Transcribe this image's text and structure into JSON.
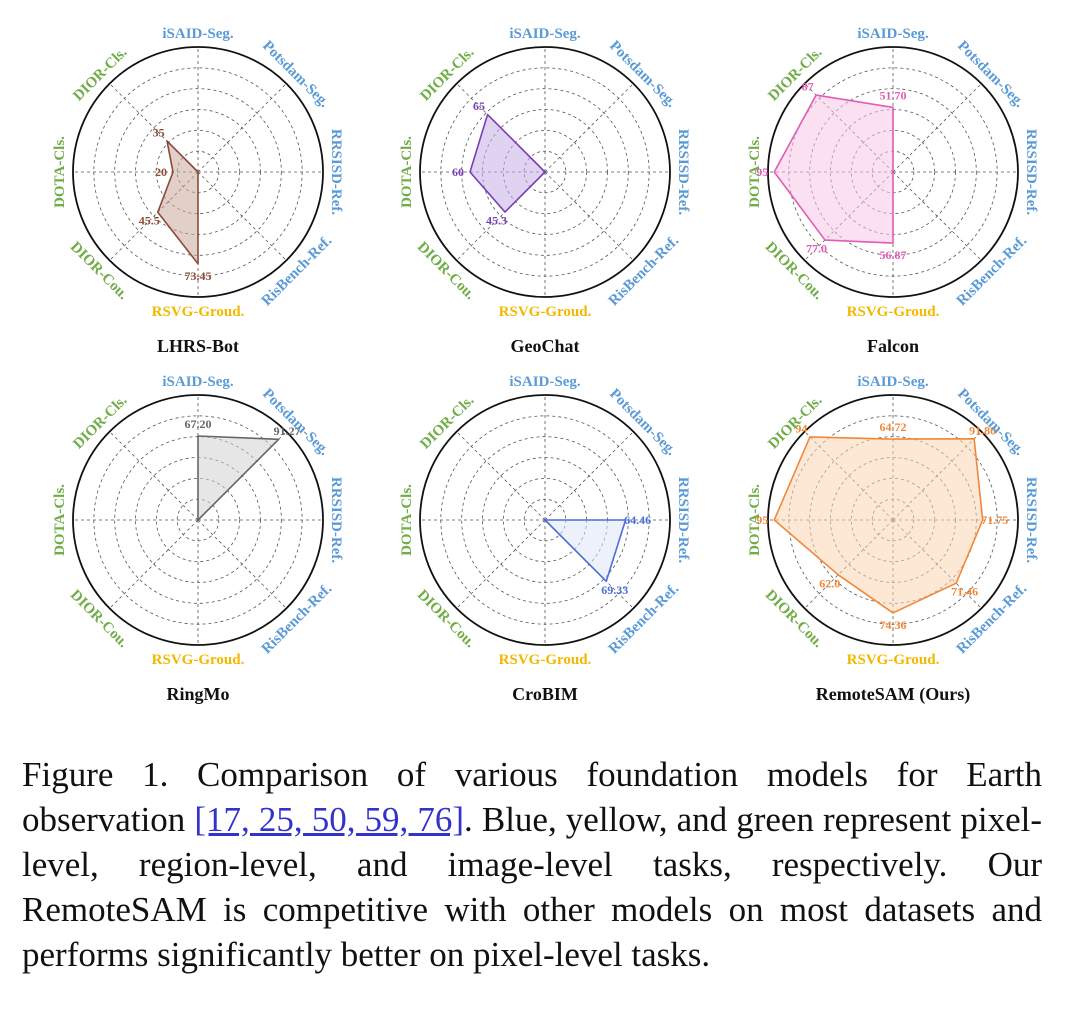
{
  "chart_data": {
    "type": "radar",
    "axes": [
      {
        "name": "iSAID-Seg.",
        "level": "pixel"
      },
      {
        "name": "Potsdam-Seg.",
        "level": "pixel"
      },
      {
        "name": "RRSISD-Ref.",
        "level": "pixel"
      },
      {
        "name": "RisBench-Ref.",
        "level": "pixel"
      },
      {
        "name": "RSVG-Groud.",
        "level": "region"
      },
      {
        "name": "DIOR-Cou.",
        "level": "image"
      },
      {
        "name": "DOTA-Cls.",
        "level": "image"
      },
      {
        "name": "DIOR-Cls.",
        "level": "image"
      }
    ],
    "level_colors": {
      "pixel": "#5b9bd5",
      "region": "#f2b800",
      "image": "#70ad47"
    },
    "range": [
      0,
      100
    ],
    "rings": 6,
    "models": [
      {
        "name": "LHRS-Bot",
        "color": "#8b4a35",
        "fill": "#c9a79a",
        "values": [
          null,
          null,
          null,
          null,
          73.45,
          45.5,
          20,
          35
        ],
        "labels": [
          null,
          null,
          null,
          null,
          "73.45",
          "45.5",
          "20",
          "35"
        ]
      },
      {
        "name": "GeoChat",
        "color": "#7a3fb3",
        "fill": "#c6aee6",
        "values": [
          null,
          null,
          null,
          null,
          null,
          45.3,
          60,
          65
        ],
        "labels": [
          null,
          null,
          null,
          null,
          null,
          "45.3",
          "60",
          "65"
        ]
      },
      {
        "name": "Falcon",
        "color": "#e05cb5",
        "fill": "#f5c6e6",
        "values": [
          51.7,
          null,
          null,
          null,
          56.87,
          77.0,
          95,
          87
        ],
        "labels": [
          "51.70",
          null,
          null,
          null,
          "56.87",
          "77.0",
          "95",
          "87"
        ]
      },
      {
        "name": "RingMo",
        "color": "#666666",
        "fill": "#d2d2d2",
        "values": [
          67.2,
          91.27,
          null,
          null,
          null,
          null,
          null,
          null
        ],
        "labels": [
          "67.20",
          "91.27",
          null,
          null,
          null,
          null,
          null,
          null
        ]
      },
      {
        "name": "CroBIM",
        "color": "#4a6fd6",
        "fill": "#dde6f7",
        "values": [
          null,
          null,
          64.46,
          69.33,
          null,
          null,
          null,
          null
        ],
        "labels": [
          null,
          null,
          "64.46",
          "69.33",
          null,
          null,
          null,
          null
        ]
      },
      {
        "name": "RemoteSAM (Ours)",
        "color": "#f0883a",
        "fill": "#fcd6b3",
        "values": [
          64.72,
          91.8,
          71.75,
          71.46,
          74.36,
          62.0,
          95,
          94
        ],
        "labels": [
          "64.72",
          "91.80",
          "71.75",
          "71.46",
          "74.36",
          "62.0",
          "95",
          "94"
        ]
      }
    ]
  },
  "caption": {
    "prefix": "Figure 1. Comparison of various foundation models for Earth observation ",
    "refs": "[17, 25, 50, 59, 76]",
    "suffix": ". Blue, yellow, and green represent pixel-level, region-level, and image-level tasks, respectively. Our RemoteSAM is competitive with other models on most datasets and performs significantly better on pixel-level tasks."
  }
}
